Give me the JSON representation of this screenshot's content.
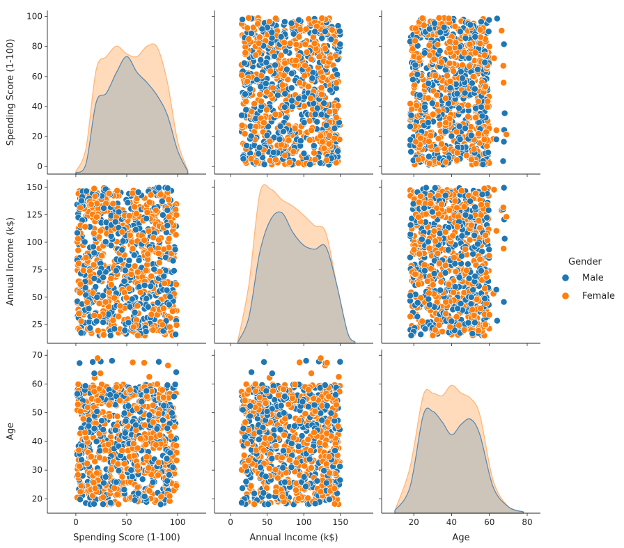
{
  "chart_data": {
    "type": "scatter",
    "title": "",
    "variables": [
      "Spending Score (1-100)",
      "Annual Income (k$)",
      "Age"
    ],
    "axis_labels": {
      "x": [
        "Spending Score (1-100)",
        "Annual Income (k$)",
        "Age"
      ],
      "y": [
        "Spending Score (1-100)",
        "Annual Income (k$)",
        "Age"
      ]
    },
    "x_ticks": [
      [
        "0",
        "50",
        "100"
      ],
      [
        "0",
        "50",
        "100",
        "150"
      ],
      [
        "20",
        "40",
        "60",
        "80"
      ]
    ],
    "y_ticks": [
      [
        "0",
        "20",
        "40",
        "60",
        "80",
        "100"
      ],
      [
        "25",
        "50",
        "75",
        "100",
        "125",
        "150"
      ],
      [
        "20",
        "30",
        "40",
        "50",
        "60",
        "70"
      ]
    ],
    "ranges": {
      "spending": [
        -28,
        128
      ],
      "income": [
        -22,
        195
      ],
      "age": [
        3,
        87
      ]
    },
    "y_ranges": {
      "spending": [
        -5,
        104
      ],
      "income": [
        8,
        157
      ],
      "age": [
        15,
        72
      ]
    },
    "legend": {
      "title": "Gender",
      "position": "center-right",
      "entries": [
        {
          "label": "Male",
          "color": "#1f77b4"
        },
        {
          "label": "Female",
          "color": "#ff7f0e"
        }
      ]
    },
    "series": [
      {
        "name": "Male",
        "color": "#1f77b4",
        "n_points": 420
      },
      {
        "name": "Female",
        "color": "#ff7f0e",
        "n_points": 480
      }
    ],
    "distributions": {
      "spending": {
        "Male": [
          [
            0,
            0.01
          ],
          [
            10,
            0.08
          ],
          [
            20,
            0.55
          ],
          [
            30,
            0.62
          ],
          [
            40,
            0.78
          ],
          [
            50,
            0.9
          ],
          [
            60,
            0.78
          ],
          [
            70,
            0.7
          ],
          [
            80,
            0.6
          ],
          [
            90,
            0.45
          ],
          [
            100,
            0.18
          ],
          [
            110,
            0.02
          ]
        ],
        "Female": [
          [
            0,
            0.02
          ],
          [
            10,
            0.2
          ],
          [
            20,
            0.8
          ],
          [
            30,
            0.9
          ],
          [
            40,
            0.98
          ],
          [
            50,
            0.92
          ],
          [
            60,
            0.9
          ],
          [
            70,
            0.98
          ],
          [
            80,
            0.97
          ],
          [
            90,
            0.7
          ],
          [
            100,
            0.25
          ],
          [
            110,
            0.03
          ]
        ]
      },
      "income": {
        "Male": [
          [
            10,
            0.01
          ],
          [
            25,
            0.2
          ],
          [
            40,
            0.7
          ],
          [
            55,
            0.95
          ],
          [
            70,
            1.0
          ],
          [
            85,
            0.85
          ],
          [
            100,
            0.75
          ],
          [
            115,
            0.72
          ],
          [
            130,
            0.74
          ],
          [
            145,
            0.45
          ],
          [
            160,
            0.08
          ],
          [
            170,
            0.01
          ]
        ],
        "Female": [
          [
            10,
            0.02
          ],
          [
            25,
            0.45
          ],
          [
            40,
            1.15
          ],
          [
            55,
            1.18
          ],
          [
            70,
            1.1
          ],
          [
            85,
            1.05
          ],
          [
            100,
            0.98
          ],
          [
            115,
            0.9
          ],
          [
            130,
            0.85
          ],
          [
            145,
            0.45
          ],
          [
            160,
            0.08
          ],
          [
            170,
            0.01
          ]
        ]
      },
      "age": {
        "Male": [
          [
            10,
            0.02
          ],
          [
            18,
            0.2
          ],
          [
            25,
            0.75
          ],
          [
            30,
            0.78
          ],
          [
            35,
            0.7
          ],
          [
            40,
            0.6
          ],
          [
            45,
            0.68
          ],
          [
            50,
            0.72
          ],
          [
            55,
            0.6
          ],
          [
            62,
            0.2
          ],
          [
            70,
            0.05
          ],
          [
            78,
            0.01
          ]
        ],
        "Female": [
          [
            10,
            0.02
          ],
          [
            18,
            0.35
          ],
          [
            25,
            0.9
          ],
          [
            30,
            0.92
          ],
          [
            35,
            0.9
          ],
          [
            40,
            0.98
          ],
          [
            45,
            0.92
          ],
          [
            50,
            0.88
          ],
          [
            55,
            0.75
          ],
          [
            62,
            0.25
          ],
          [
            70,
            0.05
          ],
          [
            78,
            0.01
          ]
        ]
      }
    }
  }
}
